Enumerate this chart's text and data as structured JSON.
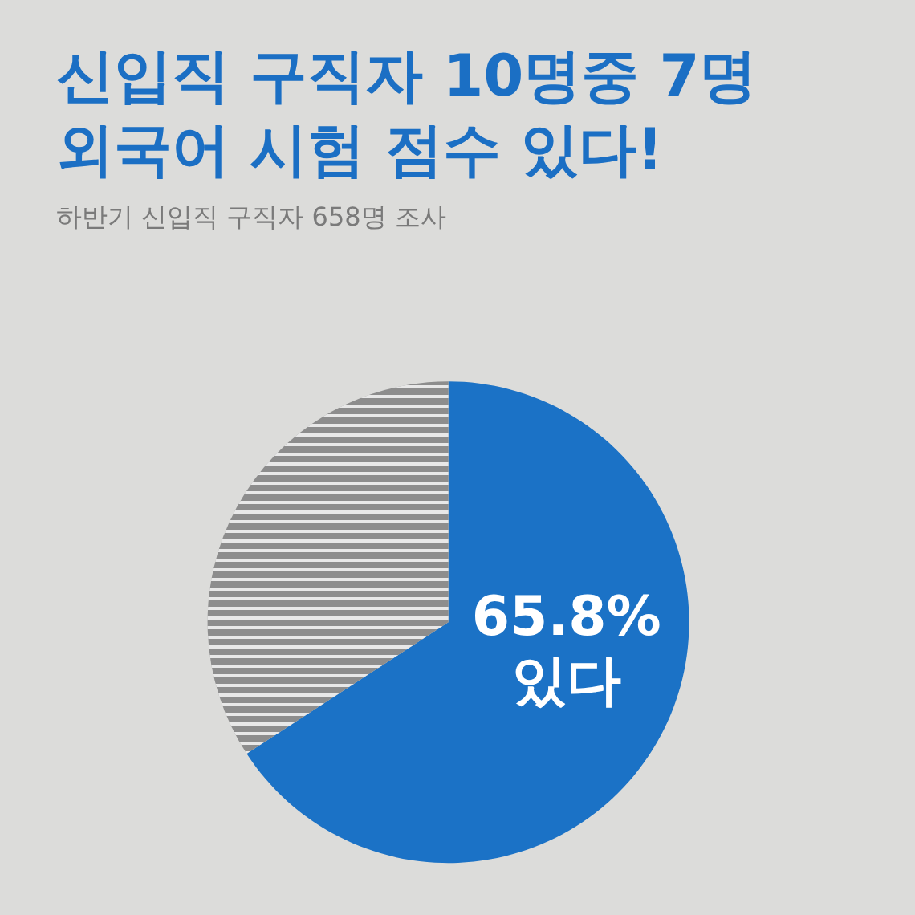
{
  "chart_data": {
    "type": "pie",
    "title": "신입직 구직자 10명중 7명\n외국어 시험 점수 있다!",
    "subtitle": "하반기 신입직 구직자 658명 조사",
    "categories": [
      "있다",
      null
    ],
    "values": [
      65.8,
      34.2
    ],
    "value_labels": [
      "65.8%",
      null
    ],
    "colors": [
      "#1b72c6",
      "#8d8d8d"
    ],
    "legend": false
  }
}
